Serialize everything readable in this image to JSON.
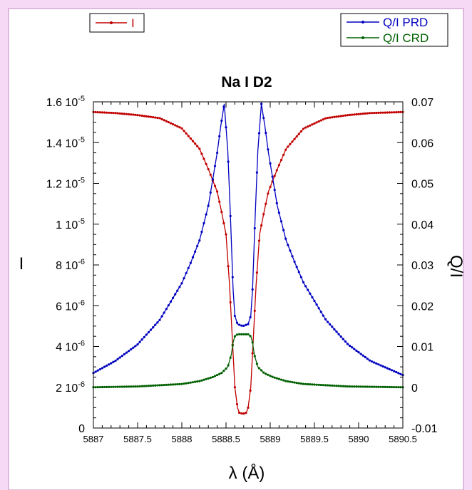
{
  "chart_data": {
    "type": "line",
    "title": "Na I D2",
    "xlabel": "λ (Å)",
    "ylabel_left": "I",
    "ylabel_right": "Q/I",
    "xlim": [
      5887,
      5890.5
    ],
    "ylim_left": [
      0,
      1.6e-05
    ],
    "ylim_right": [
      -0.01,
      0.07
    ],
    "x_ticks": [
      "5887",
      "5887.5",
      "5888",
      "5888.5",
      "5889",
      "5889.5",
      "5890",
      "5890.5"
    ],
    "y_left_ticks": [
      {
        "mant": "0",
        "exp": ""
      },
      {
        "mant": "2 10",
        "exp": "-6"
      },
      {
        "mant": "4 10",
        "exp": "-6"
      },
      {
        "mant": "6 10",
        "exp": "-6"
      },
      {
        "mant": "8 10",
        "exp": "-6"
      },
      {
        "mant": "1 10",
        "exp": "-5"
      },
      {
        "mant": "1.2 10",
        "exp": "-5"
      },
      {
        "mant": "1.4 10",
        "exp": "-5"
      },
      {
        "mant": "1.6 10",
        "exp": "-5"
      }
    ],
    "y_right_ticks": [
      "-0.01",
      "0",
      "0.01",
      "0.02",
      "0.03",
      "0.04",
      "0.05",
      "0.06",
      "0.07"
    ],
    "center": 5888.69,
    "legend_left": {
      "entries": [
        "I"
      ]
    },
    "legend_right": {
      "entries": [
        "Q/I PRD",
        "Q/I CRD"
      ]
    },
    "series": [
      {
        "name": "I",
        "axis": "left",
        "color": "#c00000",
        "points": [
          [
            5887,
            15.5
          ],
          [
            5887.25,
            15.45
          ],
          [
            5887.5,
            15.35
          ],
          [
            5887.75,
            15.2
          ],
          [
            5888,
            14.7
          ],
          [
            5888.2,
            13.7
          ],
          [
            5888.3,
            12.7
          ],
          [
            5888.4,
            11.6
          ],
          [
            5888.45,
            10.6
          ],
          [
            5888.5,
            9.5
          ],
          [
            5888.54,
            7.0
          ],
          [
            5888.57,
            4.5
          ],
          [
            5888.6,
            2.0
          ],
          [
            5888.63,
            1.0
          ],
          [
            5888.65,
            0.75
          ],
          [
            5888.69,
            0.7
          ],
          [
            5888.73,
            0.75
          ],
          [
            5888.75,
            1.0
          ],
          [
            5888.78,
            2.0
          ],
          [
            5888.81,
            4.5
          ],
          [
            5888.84,
            7.0
          ],
          [
            5888.88,
            9.5
          ],
          [
            5888.93,
            10.6
          ],
          [
            5888.98,
            11.6
          ],
          [
            5889.08,
            12.7
          ],
          [
            5889.18,
            13.7
          ],
          [
            5889.38,
            14.7
          ],
          [
            5889.63,
            15.2
          ],
          [
            5889.88,
            15.35
          ],
          [
            5890.13,
            15.45
          ],
          [
            5890.5,
            15.5
          ]
        ]
      },
      {
        "name": "Q/I PRD",
        "axis": "right",
        "color": "#0000c0",
        "points": [
          [
            5887,
            0.0035
          ],
          [
            5887.25,
            0.0065
          ],
          [
            5887.5,
            0.0105
          ],
          [
            5887.75,
            0.0165
          ],
          [
            5888,
            0.0255
          ],
          [
            5888.1,
            0.0305
          ],
          [
            5888.2,
            0.036
          ],
          [
            5888.3,
            0.0445
          ],
          [
            5888.4,
            0.0575
          ],
          [
            5888.44,
            0.064
          ],
          [
            5888.48,
            0.0695
          ],
          [
            5888.52,
            0.058
          ],
          [
            5888.55,
            0.042
          ],
          [
            5888.58,
            0.024
          ],
          [
            5888.6,
            0.0175
          ],
          [
            5888.63,
            0.0155
          ],
          [
            5888.69,
            0.015
          ],
          [
            5888.75,
            0.0155
          ],
          [
            5888.78,
            0.0175
          ],
          [
            5888.8,
            0.024
          ],
          [
            5888.83,
            0.042
          ],
          [
            5888.86,
            0.058
          ],
          [
            5888.9,
            0.0695
          ],
          [
            5888.94,
            0.064
          ],
          [
            5888.98,
            0.0575
          ],
          [
            5889.08,
            0.0445
          ],
          [
            5889.18,
            0.036
          ],
          [
            5889.28,
            0.0305
          ],
          [
            5889.38,
            0.0255
          ],
          [
            5889.63,
            0.0165
          ],
          [
            5889.88,
            0.0105
          ],
          [
            5890.13,
            0.0065
          ],
          [
            5890.5,
            0.003
          ]
        ]
      },
      {
        "name": "Q/I CRD",
        "axis": "right",
        "color": "#006000",
        "points": [
          [
            5887,
            0
          ],
          [
            5887.5,
            0.0002
          ],
          [
            5888,
            0.0008
          ],
          [
            5888.2,
            0.0015
          ],
          [
            5888.35,
            0.0025
          ],
          [
            5888.45,
            0.0035
          ],
          [
            5888.52,
            0.005
          ],
          [
            5888.56,
            0.008
          ],
          [
            5888.58,
            0.011
          ],
          [
            5888.6,
            0.0125
          ],
          [
            5888.63,
            0.013
          ],
          [
            5888.69,
            0.013
          ],
          [
            5888.75,
            0.013
          ],
          [
            5888.78,
            0.0125
          ],
          [
            5888.8,
            0.011
          ],
          [
            5888.82,
            0.008
          ],
          [
            5888.86,
            0.005
          ],
          [
            5888.93,
            0.0035
          ],
          [
            5889.03,
            0.0025
          ],
          [
            5889.18,
            0.0015
          ],
          [
            5889.38,
            0.0008
          ],
          [
            5889.88,
            0.0002
          ],
          [
            5890.5,
            0
          ]
        ]
      }
    ]
  }
}
